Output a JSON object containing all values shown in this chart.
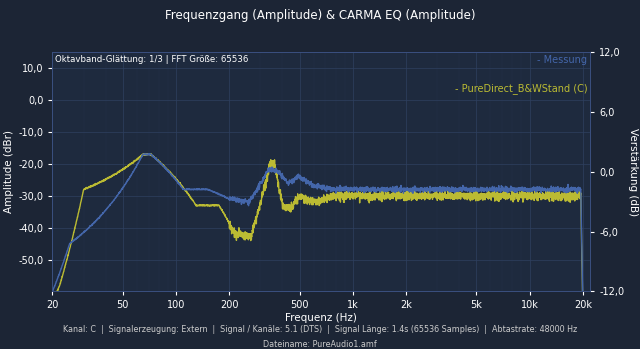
{
  "title": "Frequenzgang (Amplitude) & CARMA EQ (Amplitude)",
  "subtitle_inner": "Oktavband-Glättung: 1/3 | FFT Größe: 65536",
  "xlabel": "Frequenz (Hz)",
  "ylabel_left": "Amplitude (dBr)",
  "ylabel_right": "Verstärkung (dB)",
  "footer_line1": "Kanal: C  |  Signalerzeugung: Extern  |  Signal / Kanäle: 5.1 (DTS)  |  Signal Länge: 1.4s (65536 Samples)  |  Abtastrate: 48000 Hz",
  "footer_line2": "Dateiname: PureAudio1.amf",
  "legend_blue": "- Messung",
  "legend_yellow": "- PureDirect_B&WStand (C)",
  "bg_color": "#1c2535",
  "plot_bg_color": "#1e2a3e",
  "grid_color": "#2e4060",
  "ylim_left": [
    -60,
    15
  ],
  "ylim_right": [
    -12,
    12
  ],
  "xlim": [
    20,
    22000
  ],
  "yticks_left": [
    -50,
    -40,
    -30,
    -20,
    -10,
    0,
    10
  ],
  "yticks_right": [
    -12,
    -6,
    0,
    6,
    12
  ],
  "xticks": [
    20,
    50,
    100,
    200,
    500,
    1000,
    2000,
    5000,
    10000,
    20000
  ],
  "xtick_labels": [
    "20",
    "50",
    "100",
    "200",
    "500",
    "1k",
    "2k",
    "5k",
    "10k",
    "20k"
  ],
  "color_blue": "#4466aa",
  "color_yellow": "#bbbb33",
  "line_width": 1.0
}
